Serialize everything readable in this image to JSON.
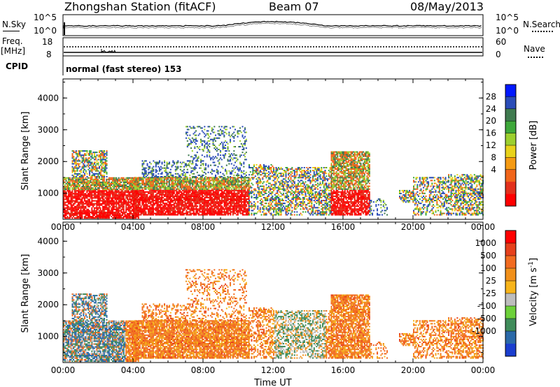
{
  "header": {
    "station": "Zhongshan Station (fitACF)",
    "beam": "Beam 07",
    "date": "08/May/2013"
  },
  "top_panels": {
    "nsky_label": "N.Sky",
    "nsky_ticks": [
      "10^5",
      "10^0"
    ],
    "nsearch_label": "N.Search",
    "nsearch_ticks": [
      "10^5",
      "10^0"
    ],
    "freq_label": "Freq.",
    "freq_unit": "[MHz]",
    "freq_ticks": [
      "18",
      "8"
    ],
    "nave_label": "Nave",
    "nave_ticks": [
      "60",
      "0"
    ],
    "cpid_label": "CPID",
    "cpid_text": "normal (fast stereo) 153"
  },
  "chart_data": [
    {
      "type": "heatmap",
      "name": "power-panel",
      "ylabel": "Slant Range [km]",
      "xlabel": "",
      "ylim": [
        180,
        4600
      ],
      "y_ticks": [
        "4000",
        "3000",
        "2000",
        "1000"
      ],
      "colorbar_label": "Power [dB]",
      "colorbar_ticks": [
        "28",
        "24",
        "20",
        "16",
        "12",
        "8",
        "4"
      ],
      "colorbar_colors": [
        "#0018ff",
        "#2a4cb8",
        "#3f7a4f",
        "#3ea83a",
        "#9ccf2e",
        "#e8d21a",
        "#f59a12",
        "#f1651a",
        "#e3301c",
        "#ff0000"
      ]
    },
    {
      "type": "heatmap",
      "name": "velocity-panel",
      "ylabel": "Slant Range [km]",
      "xlabel": "Time UT",
      "ylim": [
        180,
        4600
      ],
      "y_ticks": [
        "4000",
        "3000",
        "2000",
        "1000"
      ],
      "x_ticks": [
        "00:00",
        "04:00",
        "08:00",
        "12:00",
        "16:00",
        "20:00",
        "00:00"
      ],
      "colorbar_label": "Velocity [m s-1]",
      "colorbar_ticks": [
        "1000",
        "500",
        "100",
        "25",
        "-25",
        "-100",
        "-500",
        "-1000"
      ],
      "colorbar_colors": [
        "#1a3ecf",
        "#2a69a8",
        "#3f8c5a",
        "#6dd13a",
        "#bdbdbd",
        "#f7b41a",
        "#f1901a",
        "#f26b20",
        "#e6401c",
        "#ff0000"
      ]
    }
  ]
}
